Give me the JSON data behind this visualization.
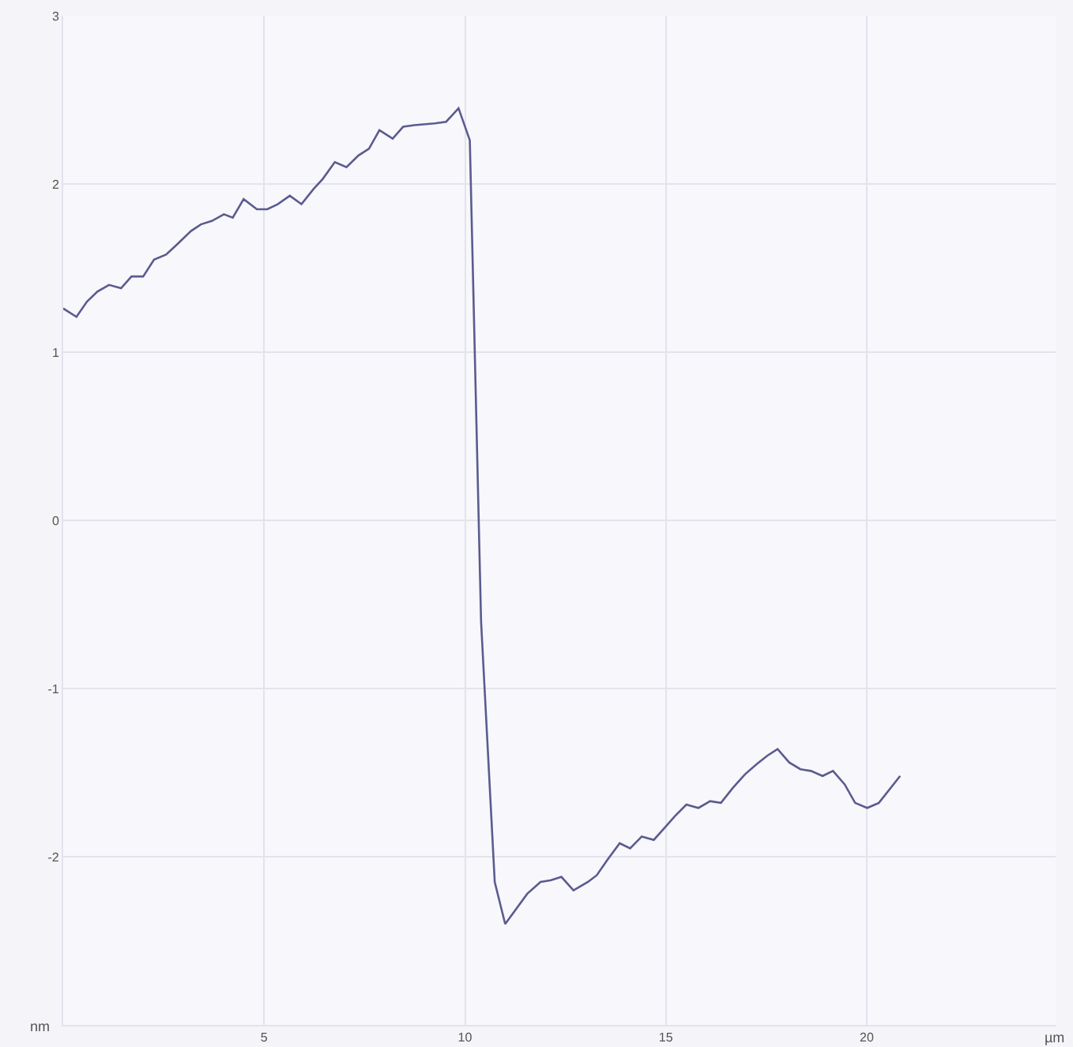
{
  "chart_data": {
    "type": "line",
    "xlabel": "µm",
    "ylabel": "nm",
    "xlim": [
      0,
      24.7
    ],
    "ylim": [
      -3,
      3
    ],
    "xticks": [
      5,
      10,
      15,
      20
    ],
    "yticks": [
      -2,
      -1,
      0,
      1,
      2,
      3
    ],
    "grid": true,
    "marker": "none",
    "line_style": "solid",
    "series": [
      {
        "color": "#5b5b8f",
        "x": [
          0,
          0.33,
          0.59,
          0.85,
          1.14,
          1.44,
          1.7,
          1.99,
          2.26,
          2.56,
          2.83,
          3.18,
          3.43,
          3.7,
          4.0,
          4.22,
          4.49,
          4.82,
          5.08,
          5.34,
          5.64,
          5.93,
          6.23,
          6.46,
          6.76,
          7.05,
          7.35,
          7.61,
          7.87,
          8.2,
          8.46,
          8.74,
          9.25,
          9.53,
          9.84,
          10.12,
          10.4,
          10.74,
          11.0,
          11.55,
          11.88,
          12.14,
          12.4,
          12.7,
          13.06,
          13.28,
          13.54,
          13.85,
          14.11,
          14.4,
          14.7,
          14.96,
          15.22,
          15.51,
          15.81,
          16.1,
          16.37,
          16.67,
          16.97,
          17.26,
          17.52,
          17.78,
          18.07,
          18.35,
          18.61,
          18.9,
          19.16,
          19.45,
          19.71,
          20.01,
          20.3,
          20.83
        ],
        "values": [
          1.26,
          1.21,
          1.3,
          1.36,
          1.4,
          1.38,
          1.45,
          1.45,
          1.55,
          1.58,
          1.64,
          1.72,
          1.76,
          1.78,
          1.82,
          1.8,
          1.91,
          1.85,
          1.85,
          1.88,
          1.93,
          1.88,
          1.97,
          2.03,
          2.13,
          2.1,
          2.17,
          2.21,
          2.32,
          2.27,
          2.34,
          2.35,
          2.36,
          2.37,
          2.45,
          2.26,
          -0.6,
          -2.15,
          -2.4,
          -2.22,
          -2.15,
          -2.14,
          -2.12,
          -2.2,
          -2.15,
          -2.11,
          -2.02,
          -1.92,
          -1.95,
          -1.88,
          -1.9,
          -1.83,
          -1.76,
          -1.69,
          -1.71,
          -1.67,
          -1.68,
          -1.59,
          -1.51,
          -1.45,
          -1.4,
          -1.36,
          -1.44,
          -1.48,
          -1.49,
          -1.52,
          -1.49,
          -1.57,
          -1.68,
          -1.71,
          -1.68,
          -1.52
        ]
      }
    ]
  }
}
